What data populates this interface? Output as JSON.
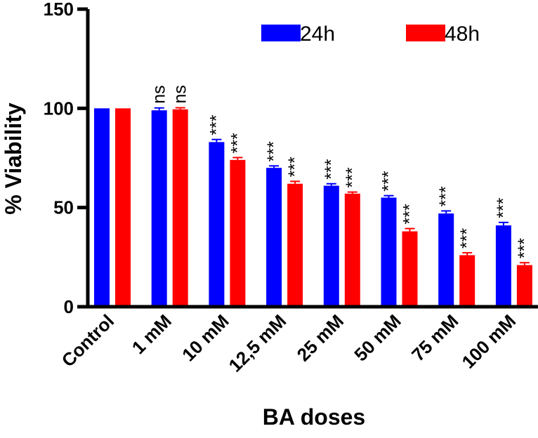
{
  "chart_data": {
    "type": "bar",
    "title": "",
    "xlabel": "BA doses",
    "ylabel": "% Viability",
    "ylim": [
      0,
      150
    ],
    "yticks": [
      0,
      50,
      100,
      150
    ],
    "categories": [
      "Control",
      "1 mM",
      "10 mM",
      "12,5 mM",
      "25 mM",
      "50 mM",
      "75 mM",
      "100 mM"
    ],
    "series": [
      {
        "name": "24h",
        "color": "#0000ff",
        "values": [
          100,
          99,
          83,
          70,
          61,
          55,
          47,
          41
        ],
        "errors": [
          0,
          1.2,
          1.3,
          1.0,
          1.0,
          1.0,
          1.3,
          1.5
        ],
        "significance": [
          "",
          "ns",
          "***",
          "***",
          "***",
          "***",
          "***",
          "***"
        ]
      },
      {
        "name": "48h",
        "color": "#ff0000",
        "values": [
          100,
          99.5,
          74,
          62,
          57,
          38,
          26,
          21
        ],
        "errors": [
          0,
          0.8,
          1.2,
          1.2,
          0.8,
          1.4,
          1.2,
          1.2
        ],
        "significance": [
          "",
          "ns",
          "***",
          "***",
          "***",
          "***",
          "***",
          "***"
        ]
      }
    ],
    "legend_position": "top-right"
  }
}
